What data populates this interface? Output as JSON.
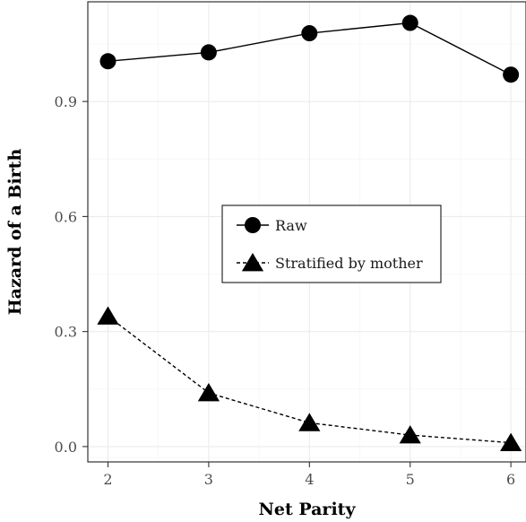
{
  "chart_data": {
    "type": "line",
    "xlabel": "Net Parity",
    "ylabel": "Hazard of a Birth",
    "x": [
      2,
      3,
      4,
      5,
      6
    ],
    "xlim": [
      1.8,
      6.15
    ],
    "ylim": [
      -0.04,
      1.16
    ],
    "xticks": [
      "2",
      "3",
      "4",
      "5",
      "6"
    ],
    "yticks": [
      0.0,
      0.3,
      0.6,
      0.9
    ],
    "ytick_labels": [
      "0.0",
      "0.3",
      "0.6",
      "0.9"
    ],
    "grid": true,
    "legend": "center",
    "series": [
      {
        "name": "Raw",
        "marker": "circle",
        "line": "solid",
        "values": [
          1.005,
          1.028,
          1.078,
          1.105,
          0.97
        ]
      },
      {
        "name": "Stratified by mother",
        "marker": "triangle",
        "line": "dashed",
        "values": [
          0.34,
          0.14,
          0.062,
          0.03,
          0.01
        ]
      }
    ]
  }
}
